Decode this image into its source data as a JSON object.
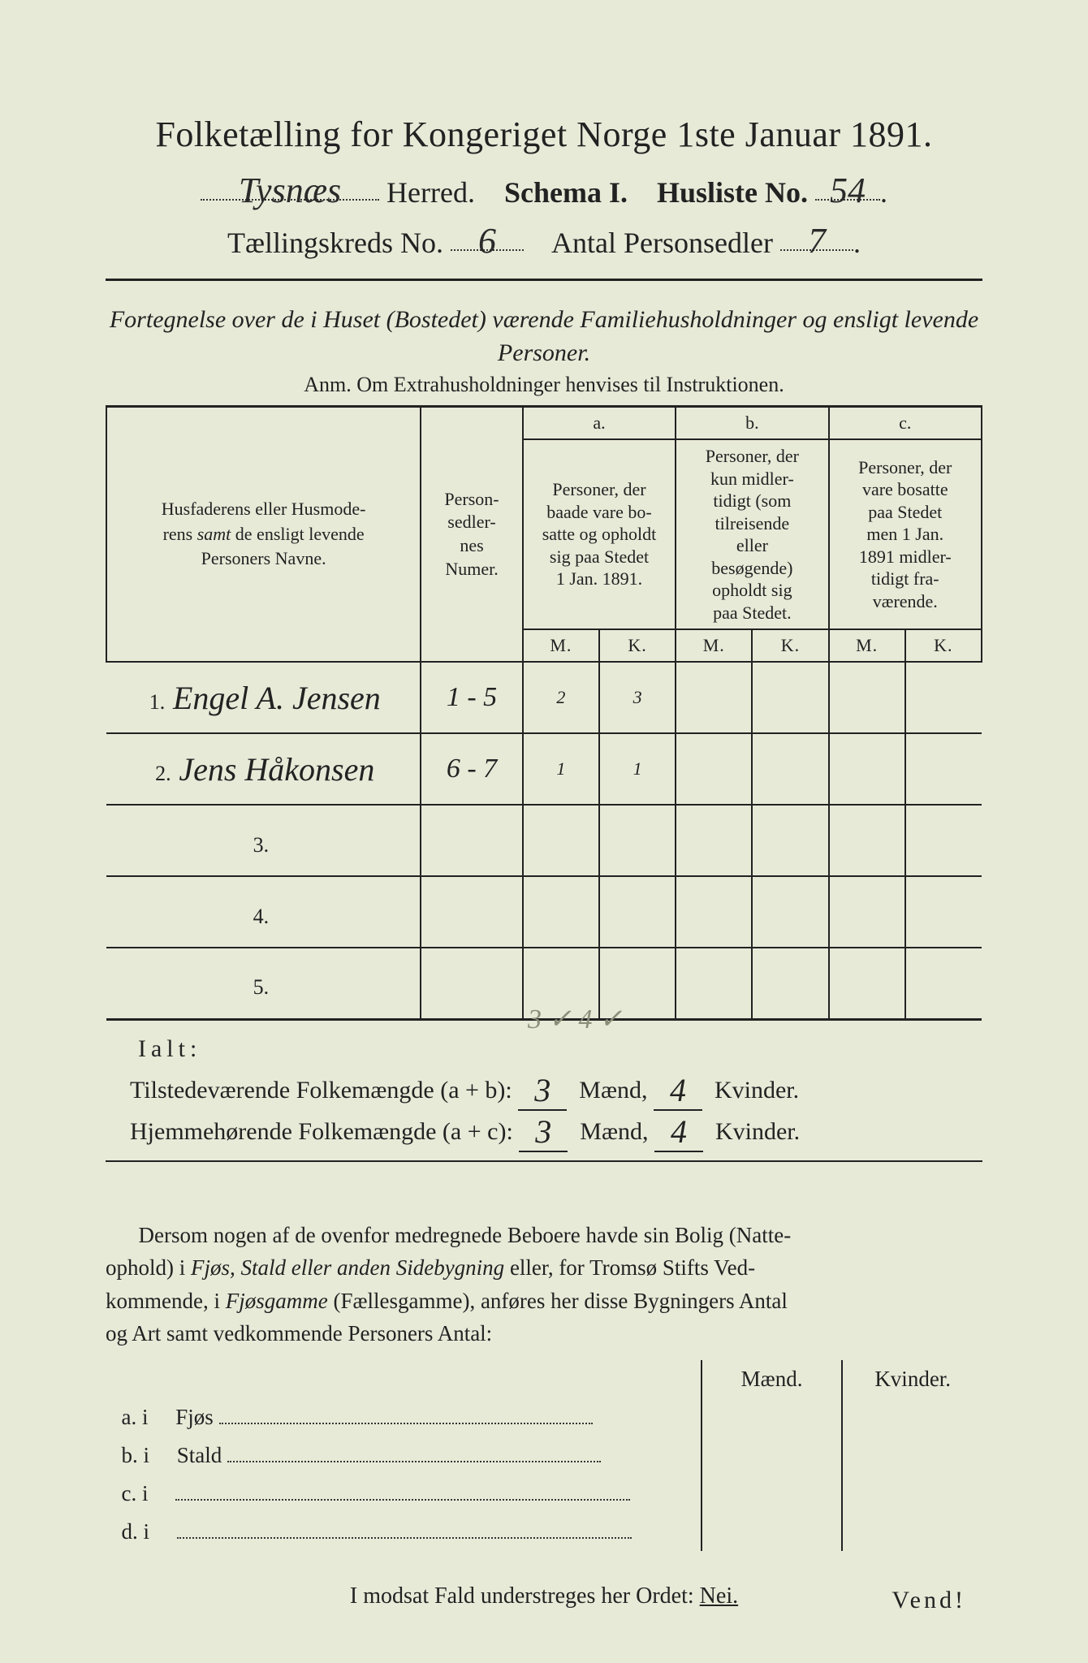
{
  "title": "Folketælling for Kongeriget Norge 1ste Januar 1891.",
  "line2": {
    "herred_value": "Tysnæs",
    "herred_label": "Herred.",
    "schema_label": "Schema I.",
    "husliste_label": "Husliste No.",
    "husliste_value": "54"
  },
  "line3": {
    "kreds_label": "Tællingskreds No.",
    "kreds_value": "6",
    "antal_label": "Antal Personsedler",
    "antal_value": "7"
  },
  "subtitle": "Fortegnelse over de i Huset (Bostedet) værende Familiehusholdninger og ensligt levende Personer.",
  "anm": "Anm.  Om Extrahusholdninger henvises til Instruktionen.",
  "table": {
    "head_names": "Husfaderens eller Husmoderens samt de ensligt levende Personers Navne.",
    "head_num": "Person-sedler-nes Numer.",
    "col_a_top": "a.",
    "col_a": "Personer, der baade vare bosatte og opholdt sig paa Stedet 1 Jan. 1891.",
    "col_b_top": "b.",
    "col_b": "Personer, der kun midler-tidigt (som tilreisende eller besøgende) opholdt sig paa Stedet.",
    "col_c_top": "c.",
    "col_c": "Personer, der vare bosatte paa Stedet men 1 Jan. 1891 midler-tidigt fra-værende.",
    "mk_m": "M.",
    "mk_k": "K.",
    "rows": [
      {
        "idx": "1.",
        "name": "Engel A. Jensen",
        "num": "1 - 5",
        "a_m": "2",
        "a_k": "3",
        "b_m": "",
        "b_k": "",
        "c_m": "",
        "c_k": ""
      },
      {
        "idx": "2.",
        "name": "Jens Håkonsen",
        "num": "6 - 7",
        "a_m": "1",
        "a_k": "1",
        "b_m": "",
        "b_k": "",
        "c_m": "",
        "c_k": ""
      },
      {
        "idx": "3.",
        "name": "",
        "num": "",
        "a_m": "",
        "a_k": "",
        "b_m": "",
        "b_k": "",
        "c_m": "",
        "c_k": ""
      },
      {
        "idx": "4.",
        "name": "",
        "num": "",
        "a_m": "",
        "a_k": "",
        "b_m": "",
        "b_k": "",
        "c_m": "",
        "c_k": ""
      },
      {
        "idx": "5.",
        "name": "",
        "num": "",
        "a_m": "",
        "a_k": "",
        "b_m": "",
        "b_k": "",
        "c_m": "",
        "c_k": ""
      }
    ]
  },
  "ialt_label": "Ialt:",
  "pencil_check": "3 ✓ 4 ✓",
  "sum1": {
    "label": "Tilstedeværende Folkemængde (a + b):",
    "m": "3",
    "mlabel": "Mænd,",
    "k": "4",
    "klabel": "Kvinder."
  },
  "sum2": {
    "label": "Hjemmehørende Folkemængde (a + c):",
    "m": "3",
    "mlabel": "Mænd,",
    "k": "4",
    "klabel": "Kvinder."
  },
  "para": "Dersom nogen af de ovenfor medregnede Beboere havde sin Bolig (Natteophold) i Fjøs, Stald eller anden Sidebygning eller, for Tromsø Stifts Vedkommende, i Fjøsgamme (Fællesgamme), anføres her disse Bygningers Antal og Art samt vedkommende Personers Antal:",
  "lower_head_m": "Mænd.",
  "lower_head_k": "Kvinder.",
  "lower_rows": [
    {
      "lead": "a.  i",
      "label": "Fjøs"
    },
    {
      "lead": "b.  i",
      "label": "Stald"
    },
    {
      "lead": "c.  i",
      "label": ""
    },
    {
      "lead": "d.  i",
      "label": ""
    }
  ],
  "nei_line_pre": "I modsat Fald understreges her Ordet: ",
  "nei_word": "Nei.",
  "vend": "Vend!",
  "colors": {
    "paper": "#e8ead8",
    "ink": "#222222",
    "pencil": "#8b8f7a"
  }
}
